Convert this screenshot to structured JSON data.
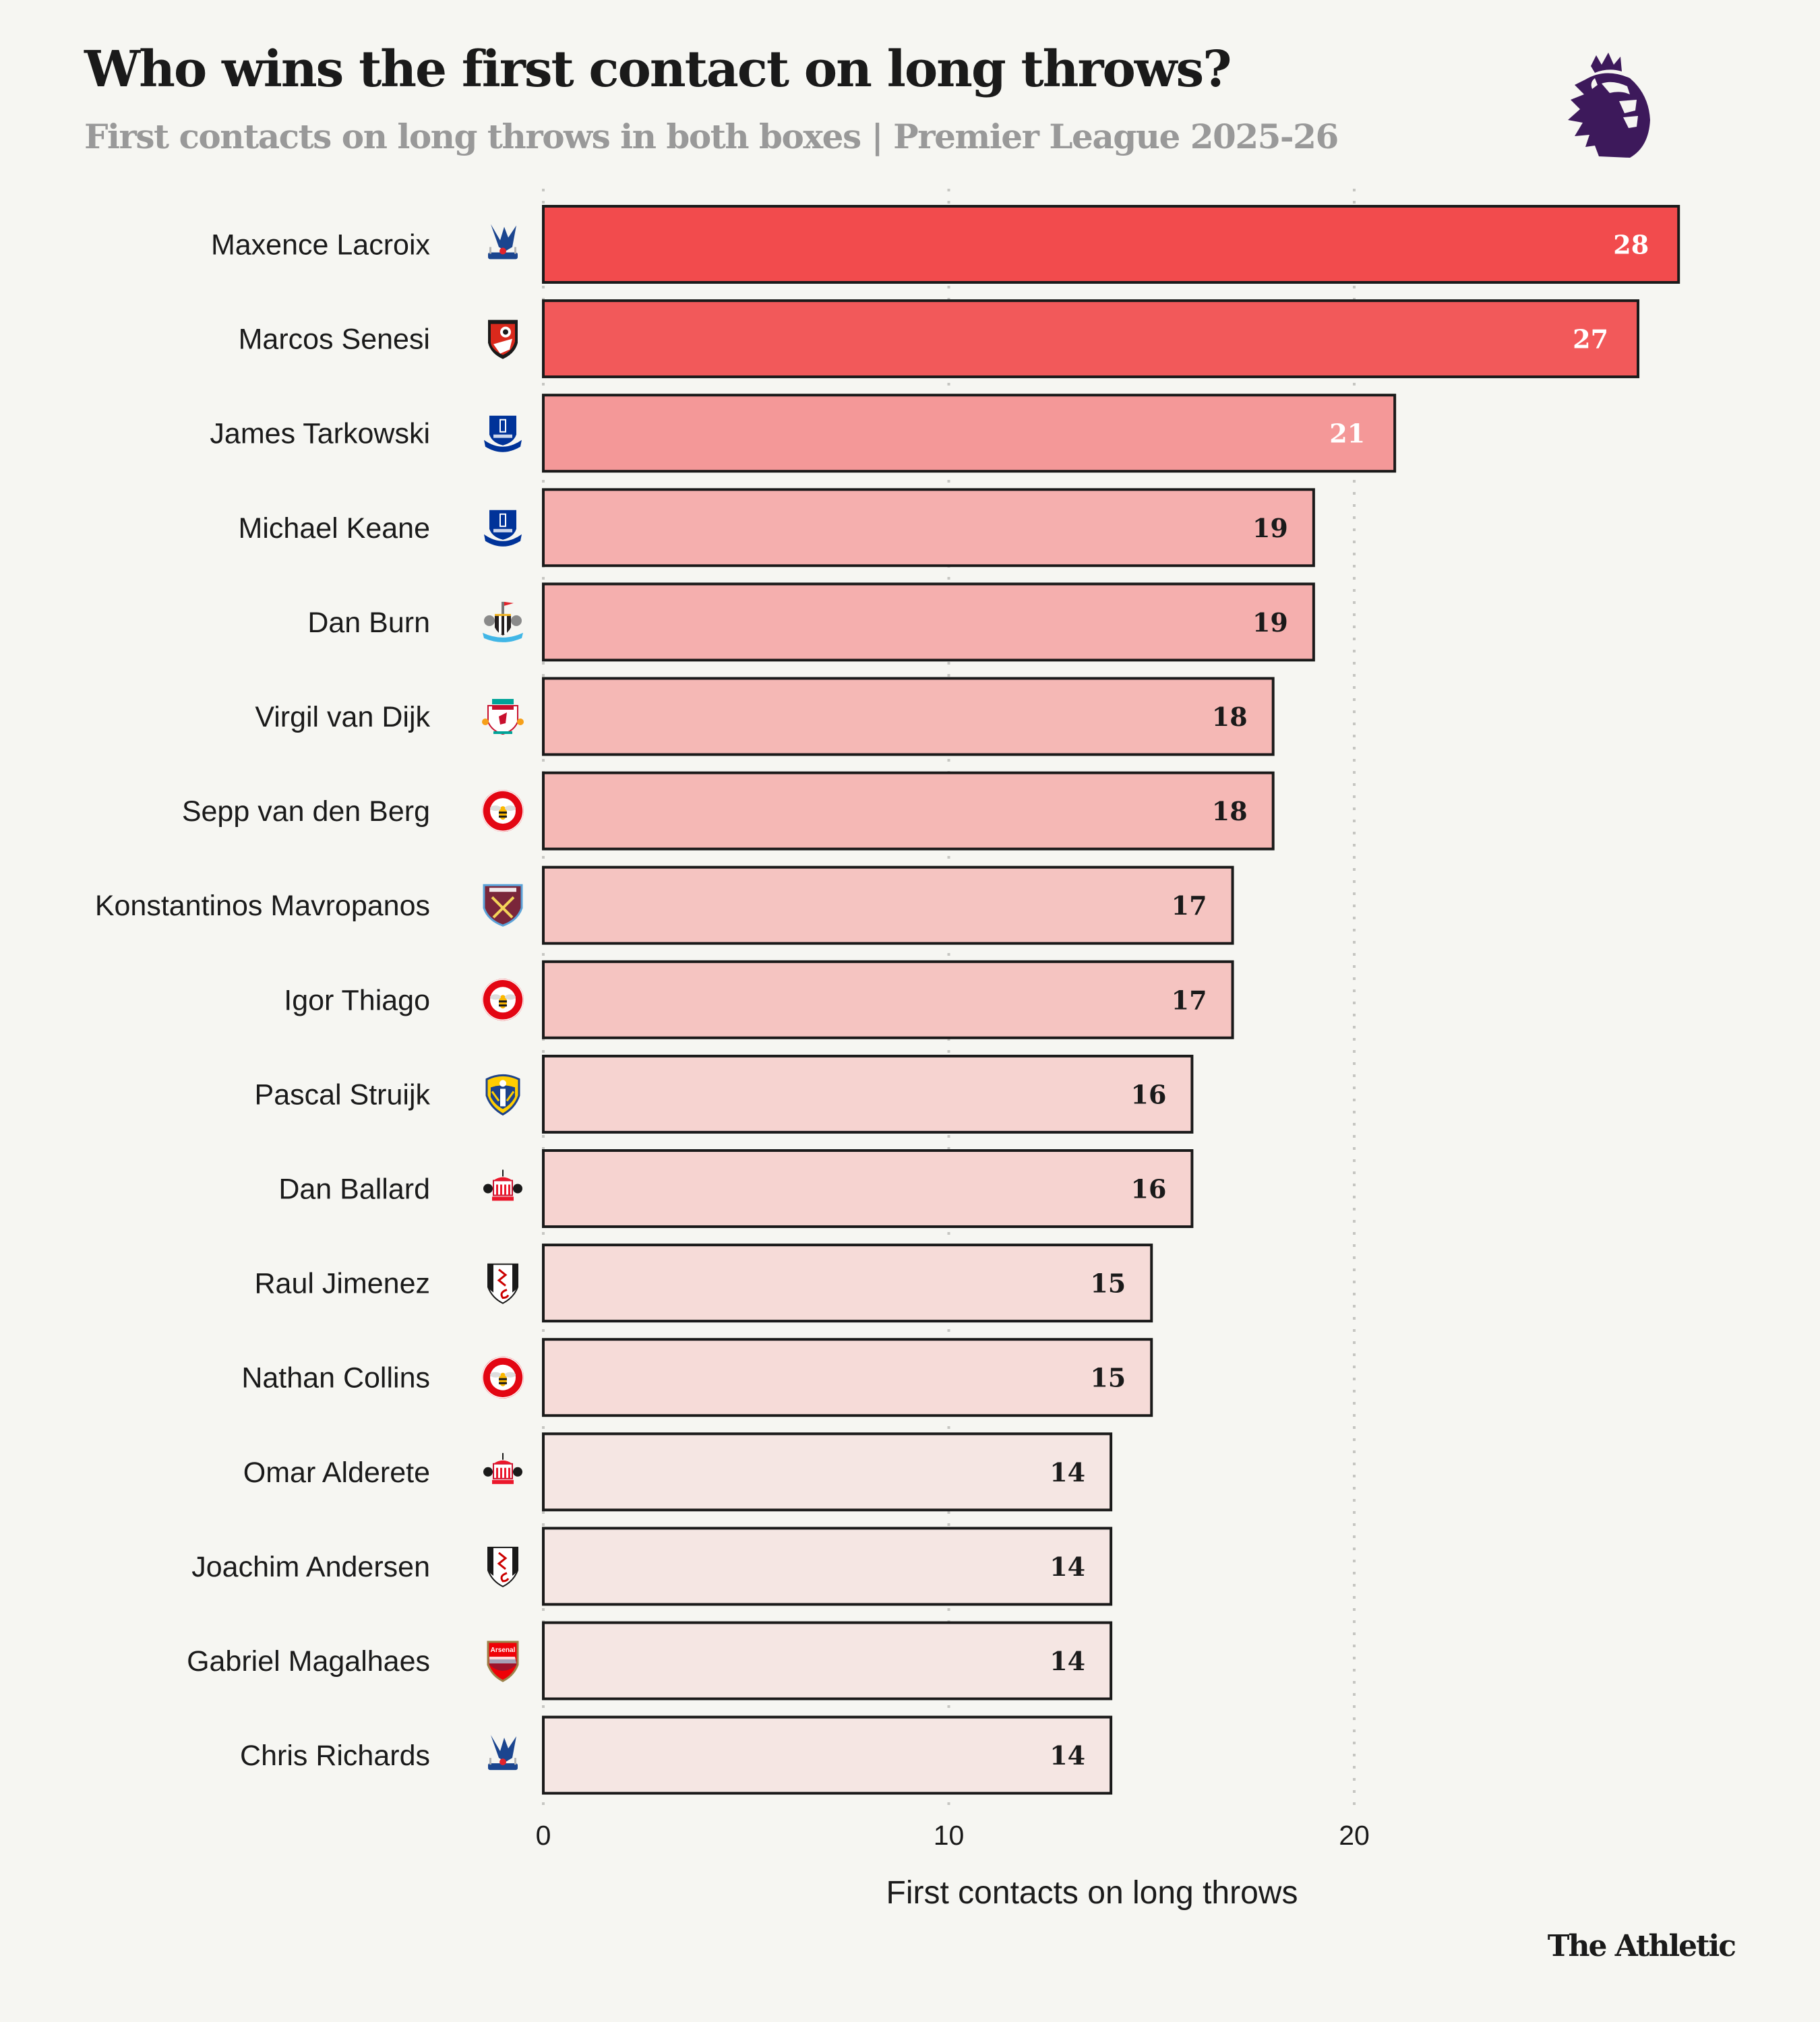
{
  "header": {
    "title": "Who wins the first contact on long throws?",
    "subtitle": "First contacts on long throws in both boxes | Premier League 2025-26",
    "league_logo": "premier-league-lion-icon",
    "league_logo_color": "#3D195B"
  },
  "footer": {
    "brand": "The Athletic"
  },
  "chart_data": {
    "type": "bar",
    "orientation": "horizontal",
    "title": "Who wins the first contact on long throws?",
    "subtitle": "First contacts on long throws in both boxes | Premier League 2025-26",
    "xlabel": "First contacts on long throws",
    "ylabel": "",
    "xlim": [
      0,
      28
    ],
    "xticks": [
      0,
      10,
      20
    ],
    "xtick_labels": [
      "0",
      "10",
      "20"
    ],
    "grid": "x-dotted",
    "legend": "none",
    "categories": [
      "Maxence Lacroix",
      "Marcos Senesi",
      "James Tarkowski",
      "Michael Keane",
      "Dan Burn",
      "Virgil van Dijk",
      "Sepp van den Berg",
      "Konstantinos Mavropanos",
      "Igor Thiago",
      "Pascal Struijk",
      "Dan Ballard",
      "Raul Jimenez",
      "Nathan Collins",
      "Omar Alderete",
      "Joachim Andersen",
      "Gabriel Magalhaes",
      "Chris Richards"
    ],
    "values": [
      28,
      27,
      21,
      19,
      19,
      18,
      18,
      17,
      17,
      16,
      16,
      15,
      15,
      14,
      14,
      14,
      14
    ],
    "clubs": [
      "crystal-palace",
      "bournemouth",
      "everton",
      "everton",
      "newcastle",
      "liverpool",
      "brentford",
      "west-ham",
      "brentford",
      "leeds",
      "sunderland",
      "fulham",
      "brentford",
      "sunderland",
      "fulham",
      "arsenal",
      "crystal-palace"
    ],
    "color_scale": {
      "28": "#F24B4D",
      "27": "#F2595A",
      "21": "#F49898",
      "19": "#F5AFAE",
      "18": "#F5B8B5",
      "17": "#F5C4C1",
      "16": "#F6D3D0",
      "15": "#F6DBD8",
      "14": "#F5E6E3"
    },
    "value_label_colors": {
      "light": "#FFFFFF",
      "dark": "#1A1A1A",
      "light_threshold": 21
    }
  }
}
